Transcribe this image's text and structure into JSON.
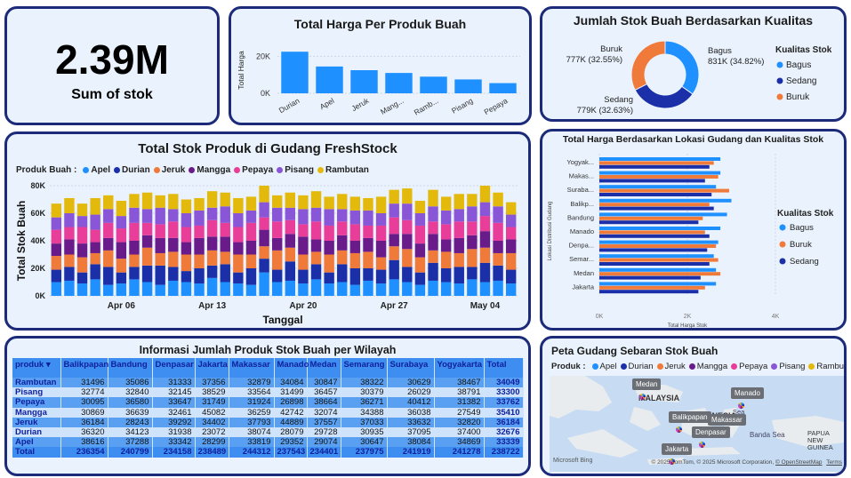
{
  "kpi": {
    "value": "2.39M",
    "label": "Sum of stok"
  },
  "price_chart": {
    "chart_data": {
      "type": "bar",
      "title": "Total Harga Per Produk Buah",
      "ylabel": "Total Harga",
      "xlabel": "",
      "categories": [
        "Durian",
        "Apel",
        "Jeruk",
        "Mang...",
        "Ramb...",
        "Pisang",
        "Pepaya"
      ],
      "values": [
        22500,
        14500,
        12500,
        11000,
        9000,
        7500,
        5500
      ],
      "yticks": [
        "0K",
        "20K"
      ],
      "ylim": [
        0,
        25000
      ],
      "color": "#1e90ff"
    }
  },
  "quality_donut": {
    "chart_data": {
      "type": "pie",
      "title": "Jumlah Stok Buah Berdasarkan Kualitas",
      "categories": [
        "Bagus",
        "Sedang",
        "Buruk"
      ],
      "values": [
        831000,
        779000,
        777000
      ],
      "labels": [
        "831K (34.82%)",
        "779K (32.63%)",
        "777K (32.55%)"
      ],
      "colors": [
        "#1e90ff",
        "#1b2fa8",
        "#f07a3a"
      ],
      "legend_title": "Kualitas Stok",
      "legend_position": "right"
    }
  },
  "stock_chart": {
    "chart_data": {
      "type": "bar",
      "stacked": true,
      "title": "Total Stok Produk di Gudang FreshStock",
      "xlabel": "Tanggal",
      "ylabel": "Total Stok Buah",
      "legend_title": "Produk Buah :",
      "ylim": [
        0,
        80000
      ],
      "yticks": [
        "0K",
        "20K",
        "40K",
        "60K",
        "80K"
      ],
      "xticks": [
        "Apr 06",
        "Apr 13",
        "Apr 20",
        "Apr 27",
        "May 04"
      ],
      "series": [
        {
          "name": "Apel",
          "color": "#1e90ff",
          "values": [
            10,
            11,
            9,
            12,
            8,
            9,
            12,
            10,
            8,
            11,
            10,
            9,
            13,
            10,
            9,
            8,
            17,
            10,
            11,
            9,
            12,
            9,
            10,
            8,
            11,
            9,
            12,
            10,
            8,
            11,
            10,
            9,
            12,
            10,
            11,
            9
          ]
        },
        {
          "name": "Durian",
          "color": "#1b2fa8",
          "values": [
            9,
            10,
            8,
            11,
            13,
            8,
            9,
            12,
            14,
            10,
            8,
            11,
            9,
            13,
            8,
            12,
            10,
            9,
            14,
            10,
            11,
            8,
            13,
            12,
            9,
            10,
            14,
            11,
            9,
            13,
            10,
            12,
            9,
            14,
            11,
            10
          ]
        },
        {
          "name": "Jeruk",
          "color": "#f07a3a",
          "values": [
            10,
            9,
            11,
            8,
            12,
            10,
            9,
            13,
            9,
            11,
            12,
            10,
            11,
            9,
            13,
            10,
            9,
            14,
            10,
            11,
            9,
            13,
            10,
            11,
            12,
            9,
            10,
            13,
            11,
            9,
            12,
            10,
            13,
            11,
            9,
            12
          ]
        },
        {
          "name": "Mangga",
          "color": "#6a1b8a",
          "values": [
            9,
            11,
            10,
            8,
            9,
            12,
            10,
            9,
            11,
            10,
            9,
            12,
            10,
            11,
            9,
            10,
            12,
            9,
            10,
            13,
            9,
            10,
            11,
            9,
            10,
            12,
            9,
            11,
            10,
            12,
            9,
            11,
            10,
            12,
            9,
            10
          ]
        },
        {
          "name": "Pepaya",
          "color": "#e83e9a",
          "values": [
            10,
            9,
            12,
            9,
            11,
            10,
            13,
            9,
            10,
            12,
            11,
            9,
            12,
            10,
            11,
            13,
            9,
            12,
            10,
            9,
            13,
            11,
            10,
            12,
            9,
            11,
            12,
            10,
            13,
            9,
            11,
            12,
            10,
            11,
            13,
            9
          ]
        },
        {
          "name": "Pisang",
          "color": "#8a56d8",
          "values": [
            9,
            10,
            8,
            11,
            10,
            9,
            11,
            10,
            12,
            9,
            10,
            11,
            9,
            12,
            10,
            9,
            11,
            10,
            9,
            11,
            10,
            12,
            9,
            10,
            11,
            9,
            10,
            12,
            9,
            11,
            10,
            9,
            11,
            10,
            12,
            9
          ]
        },
        {
          "name": "Rambutan",
          "color": "#e3b90c",
          "values": [
            10,
            11,
            9,
            12,
            10,
            11,
            10,
            12,
            9,
            11,
            10,
            9,
            12,
            10,
            11,
            10,
            12,
            9,
            11,
            10,
            12,
            9,
            11,
            10,
            9,
            12,
            10,
            11,
            9,
            12,
            10,
            11,
            9,
            12,
            10,
            9
          ]
        }
      ],
      "value_unit": "K"
    }
  },
  "location_chart": {
    "chart_data": {
      "type": "bar",
      "orientation": "horizontal",
      "title": "Total Harga Berdasarkan Lokasi Gudang dan Kualitas Stok",
      "xlabel": "Total Harga Stok",
      "ylabel": "Lokasi Distribusi Gudang",
      "categories": [
        "Yogyak...",
        "Makas...",
        "Suraba...",
        "Balikp...",
        "Bandung",
        "Manado",
        "Denpa...",
        "Semar...",
        "Medan",
        "Jakarta"
      ],
      "xticks": [
        "0K",
        "2K",
        "4K"
      ],
      "xlim": [
        0,
        4000
      ],
      "legend_title": "Kualitas Stok",
      "series": [
        {
          "name": "Bagus",
          "color": "#1e90ff",
          "values": [
            2750,
            2750,
            2650,
            3000,
            2900,
            2750,
            2700,
            2600,
            2650,
            2650
          ]
        },
        {
          "name": "Buruk",
          "color": "#f07a3a",
          "values": [
            2600,
            2700,
            2950,
            2500,
            2350,
            2400,
            2650,
            2700,
            2750,
            2400
          ]
        },
        {
          "name": "Sedang",
          "color": "#1b2fa8",
          "values": [
            2500,
            2400,
            2550,
            2600,
            2250,
            2500,
            2450,
            2500,
            2300,
            2250
          ]
        }
      ]
    }
  },
  "region_table": {
    "title": "Informasi Jumlah Produk Stok Buah per Wilayah",
    "columns": [
      "produk",
      "Balikpapan",
      "Bandung",
      "Denpasar",
      "Jakarta",
      "Makassar",
      "Manado",
      "Medan",
      "Semarang",
      "Surabaya",
      "Yogyakarta",
      "Total"
    ],
    "rows": [
      [
        "Rambutan",
        "31496",
        "35086",
        "31333",
        "37356",
        "32879",
        "34084",
        "30847",
        "38322",
        "30629",
        "38467",
        "34049"
      ],
      [
        "Pisang",
        "32774",
        "32840",
        "32145",
        "38529",
        "33564",
        "31499",
        "36457",
        "30379",
        "26029",
        "38791",
        "33300"
      ],
      [
        "Pepaya",
        "30095",
        "36580",
        "33647",
        "31749",
        "31924",
        "26898",
        "38664",
        "36271",
        "40412",
        "31382",
        "33762"
      ],
      [
        "Mangga",
        "30869",
        "36639",
        "32461",
        "45082",
        "36259",
        "42742",
        "32074",
        "34388",
        "36038",
        "27549",
        "35410"
      ],
      [
        "Jeruk",
        "36184",
        "28243",
        "39292",
        "34402",
        "37793",
        "44889",
        "37557",
        "37033",
        "33632",
        "32820",
        "36184"
      ],
      [
        "Durian",
        "36320",
        "34123",
        "31938",
        "23072",
        "38074",
        "28079",
        "29728",
        "30935",
        "37095",
        "37400",
        "32676"
      ],
      [
        "Apel",
        "38616",
        "37288",
        "33342",
        "28299",
        "33819",
        "29352",
        "29074",
        "30647",
        "38084",
        "34869",
        "33339"
      ]
    ],
    "total": [
      "Total",
      "236354",
      "240799",
      "234158",
      "238489",
      "244312",
      "237543",
      "234401",
      "237975",
      "241919",
      "241278",
      "238722"
    ]
  },
  "map": {
    "title": "Peta Gudang Sebaran Stok Buah",
    "legend_title": "Produk :",
    "products": [
      {
        "name": "Apel",
        "color": "#1e90ff"
      },
      {
        "name": "Durian",
        "color": "#1b2fa8"
      },
      {
        "name": "Jeruk",
        "color": "#f07a3a"
      },
      {
        "name": "Mangga",
        "color": "#6a1b8a"
      },
      {
        "name": "Pepaya",
        "color": "#e83e9a"
      },
      {
        "name": "Pisang",
        "color": "#8a56d8"
      },
      {
        "name": "Rambutan",
        "color": "#e3b90c"
      }
    ],
    "places": {
      "malaysia": "MALAYSIA",
      "indonesia": "INDONESIA",
      "banda_sea": "Banda Sea",
      "papua": "PAPUA NEW GUINEA",
      "sea_fragment": "Sea"
    },
    "markers": [
      "Medan",
      "Manado",
      "Balikpapan",
      "Makassar",
      "Denpasar",
      "Jakarta"
    ],
    "brand": "Microsoft Bing",
    "copyright": "© 2025 TomTom, © 2025 Microsoft Corporation,",
    "osm": "© OpenStreetMap",
    "terms": "Terms"
  }
}
